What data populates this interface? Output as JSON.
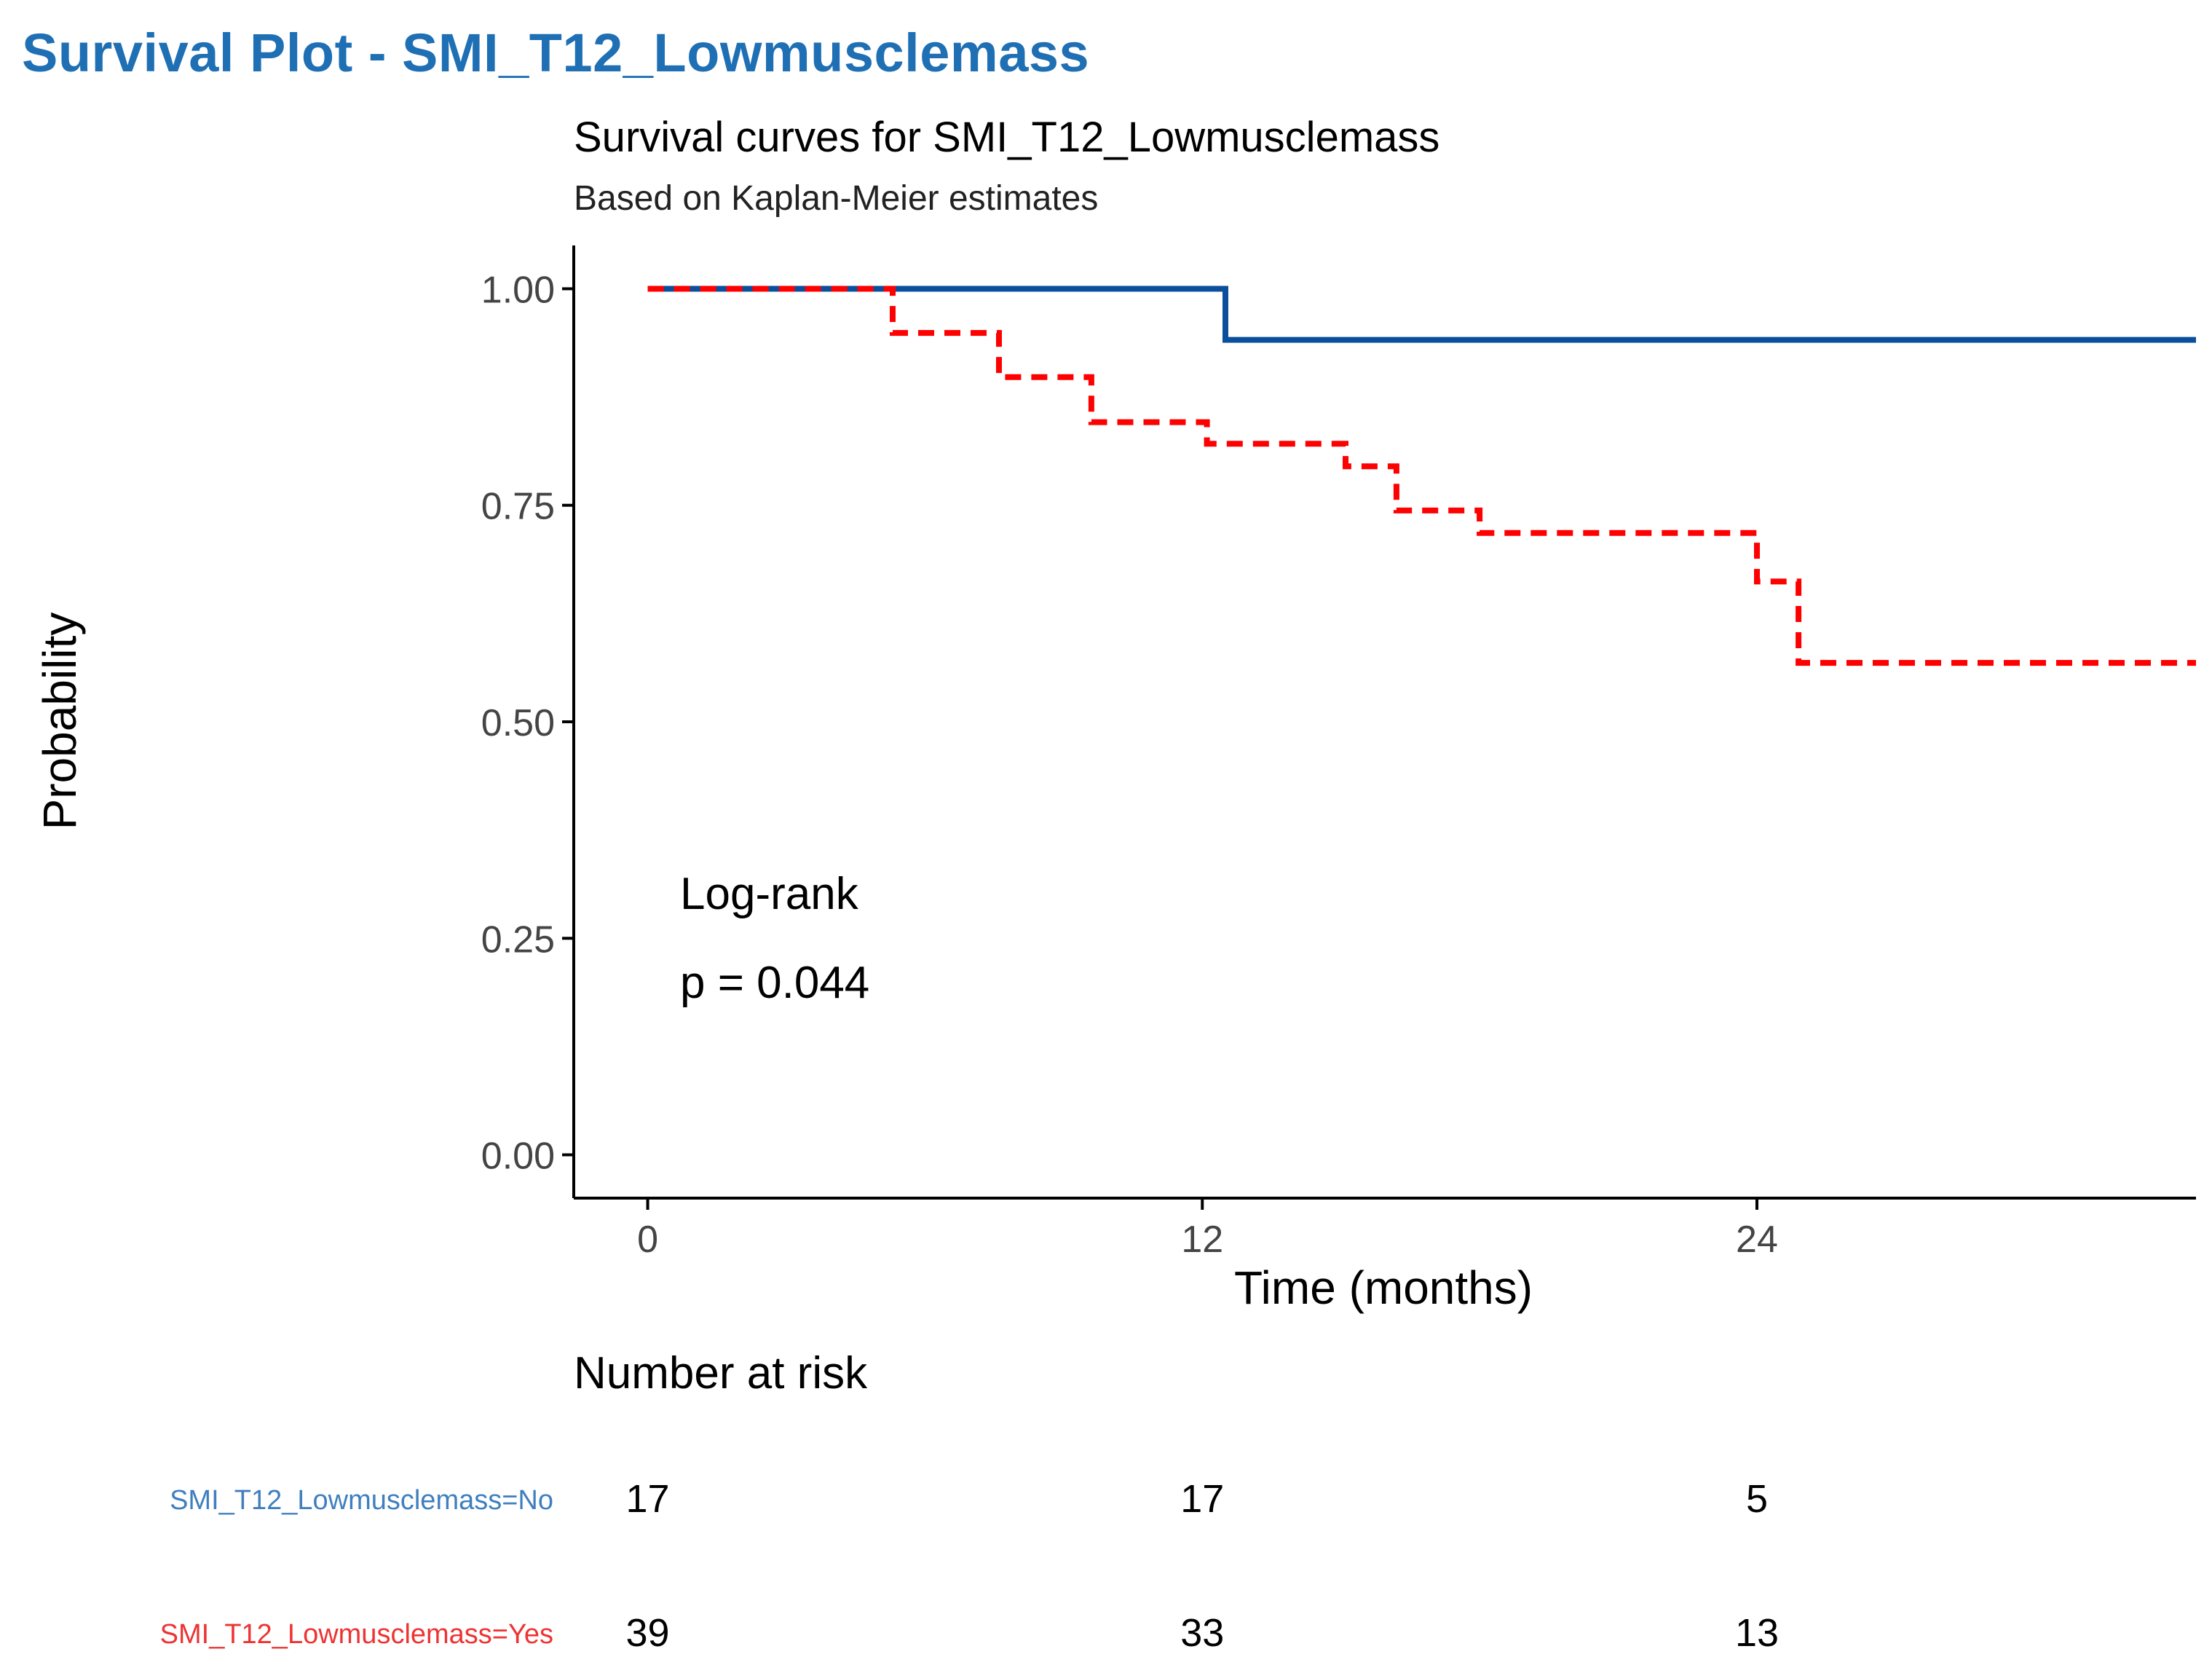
{
  "page": {
    "title": "Survival Plot - SMI_T12_Lowmusclemass"
  },
  "colors": {
    "title": "#1f6fb4",
    "no_group": "#0b4f9c",
    "yes_group": "#ff0000",
    "no_label": "#3f7fbf",
    "yes_label": "#ee3333",
    "axis": "#000000",
    "tick_text": "#444444"
  },
  "chart_data": {
    "type": "line",
    "subtype": "kaplan-meier-step",
    "title": "Survival curves for SMI_T12_Lowmusclemass",
    "subtitle": "Based on Kaplan-Meier estimates",
    "xlabel": "Time (months)",
    "ylabel": "Probability",
    "xlim": [
      -1.6,
      33.5
    ],
    "ylim": [
      -0.05,
      1.05
    ],
    "x_ticks": [
      0,
      12,
      24
    ],
    "x_tick_labels": [
      "0",
      "12",
      "24"
    ],
    "y_ticks": [
      0,
      0.25,
      0.5,
      0.75,
      1.0
    ],
    "y_tick_labels": [
      "0.00",
      "0.25",
      "0.50",
      "0.75",
      "1.00"
    ],
    "grid": false,
    "annotation": {
      "line1": "Log-rank",
      "line2": "p = 0.044"
    },
    "series": [
      {
        "name": "SMI_T12_Lowmusclemass=No",
        "style": "solid",
        "x": [
          0,
          12.5,
          33.5
        ],
        "y": [
          1.0,
          0.941,
          0.941
        ]
      },
      {
        "name": "SMI_T12_Lowmusclemass=Yes",
        "style": "dashed",
        "x": [
          0,
          5.3,
          7.6,
          9.6,
          12.1,
          15.1,
          16.2,
          18.0,
          24.0,
          24.9,
          33.5
        ],
        "y": [
          1.0,
          0.949,
          0.898,
          0.846,
          0.821,
          0.795,
          0.744,
          0.718,
          0.662,
          0.568,
          0.568
        ]
      }
    ],
    "risk_table": {
      "title": "Number at risk",
      "times": [
        0,
        12,
        24
      ],
      "rows": [
        {
          "label": "SMI_T12_Lowmusclemass=No",
          "counts": [
            "17",
            "17",
            "5"
          ]
        },
        {
          "label": "SMI_T12_Lowmusclemass=Yes",
          "counts": [
            "39",
            "33",
            "13"
          ]
        }
      ]
    }
  }
}
